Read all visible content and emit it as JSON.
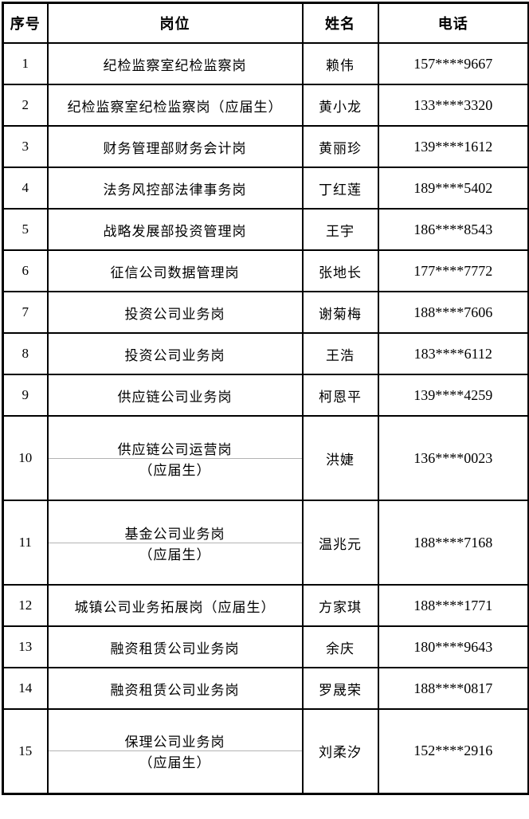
{
  "table": {
    "headers": [
      "序号",
      "岗位",
      "姓名",
      "电话"
    ],
    "rows": [
      {
        "no": "1",
        "position": "纪检监察室纪检监察岗",
        "position_line2": "",
        "name": "赖伟",
        "phone": "157****9667"
      },
      {
        "no": "2",
        "position": "纪检监察室纪检监察岗（应届生）",
        "position_line2": "",
        "name": "黄小龙",
        "phone": "133****3320"
      },
      {
        "no": "3",
        "position": "财务管理部财务会计岗",
        "position_line2": "",
        "name": "黄丽珍",
        "phone": "139****1612"
      },
      {
        "no": "4",
        "position": "法务风控部法律事务岗",
        "position_line2": "",
        "name": "丁红莲",
        "phone": "189****5402"
      },
      {
        "no": "5",
        "position": "战略发展部投资管理岗",
        "position_line2": "",
        "name": "王宇",
        "phone": "186****8543"
      },
      {
        "no": "6",
        "position": "征信公司数据管理岗",
        "position_line2": "",
        "name": "张地长",
        "phone": "177****7772"
      },
      {
        "no": "7",
        "position": "投资公司业务岗",
        "position_line2": "",
        "name": "谢菊梅",
        "phone": "188****7606"
      },
      {
        "no": "8",
        "position": "投资公司业务岗",
        "position_line2": "",
        "name": "王浩",
        "phone": "183****6112"
      },
      {
        "no": "9",
        "position": "供应链公司业务岗",
        "position_line2": "",
        "name": "柯恩平",
        "phone": "139****4259"
      },
      {
        "no": "10",
        "position": "供应链公司运营岗",
        "position_line2": "（应届生）",
        "name": "洪婕",
        "phone": "136****0023"
      },
      {
        "no": "11",
        "position": "基金公司业务岗",
        "position_line2": "（应届生）",
        "name": "温兆元",
        "phone": "188****7168"
      },
      {
        "no": "12",
        "position": "城镇公司业务拓展岗（应届生）",
        "position_line2": "",
        "name": "方家琪",
        "phone": "188****1771"
      },
      {
        "no": "13",
        "position": "融资租赁公司业务岗",
        "position_line2": "",
        "name": "余庆",
        "phone": "180****9643"
      },
      {
        "no": "14",
        "position": "融资租赁公司业务岗",
        "position_line2": "",
        "name": "罗晟荣",
        "phone": "188****0817"
      },
      {
        "no": "15",
        "position": "保理公司业务岗",
        "position_line2": "（应届生）",
        "name": "刘柔汐",
        "phone": "152****2916"
      }
    ]
  },
  "colors": {
    "border": "#000000",
    "sub_divider": "#b3b3b3",
    "text": "#000000",
    "background": "#ffffff"
  }
}
